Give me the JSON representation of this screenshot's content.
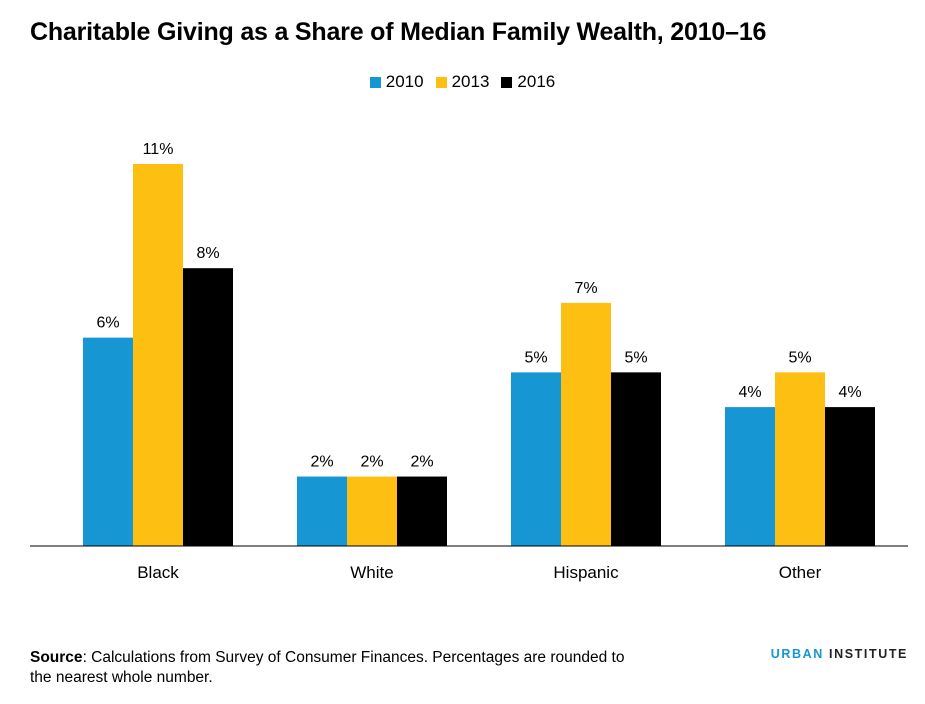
{
  "title": "Charitable Giving as a Share of Median Family Wealth, 2010–16",
  "legend": [
    {
      "label": "2010",
      "color": "#1696d2"
    },
    {
      "label": "2013",
      "color": "#fdbf11"
    },
    {
      "label": "2016",
      "color": "#000000"
    }
  ],
  "chart_data": {
    "type": "bar",
    "categories": [
      "Black",
      "White",
      "Hispanic",
      "Other"
    ],
    "series": [
      {
        "name": "2010",
        "values": [
          6,
          2,
          5,
          4
        ],
        "labels": [
          "6%",
          "2%",
          "5%",
          "4%"
        ],
        "color": "#1696d2"
      },
      {
        "name": "2013",
        "values": [
          11,
          2,
          7,
          5
        ],
        "labels": [
          "11%",
          "2%",
          "7%",
          "5%"
        ],
        "color": "#fdbf11"
      },
      {
        "name": "2016",
        "values": [
          8,
          2,
          5,
          4
        ],
        "labels": [
          "8%",
          "2%",
          "5%",
          "4%"
        ],
        "color": "#000000"
      }
    ],
    "ylim": [
      0,
      11
    ],
    "grid": false,
    "legend_position": "top-center"
  },
  "footer": {
    "source_label": "Source",
    "source_text": ": Calculations from Survey of Consumer Finances.  Percentages are rounded to the nearest whole number."
  },
  "logo": {
    "part1": "URBAN",
    "part2": "INSTITUTE"
  }
}
